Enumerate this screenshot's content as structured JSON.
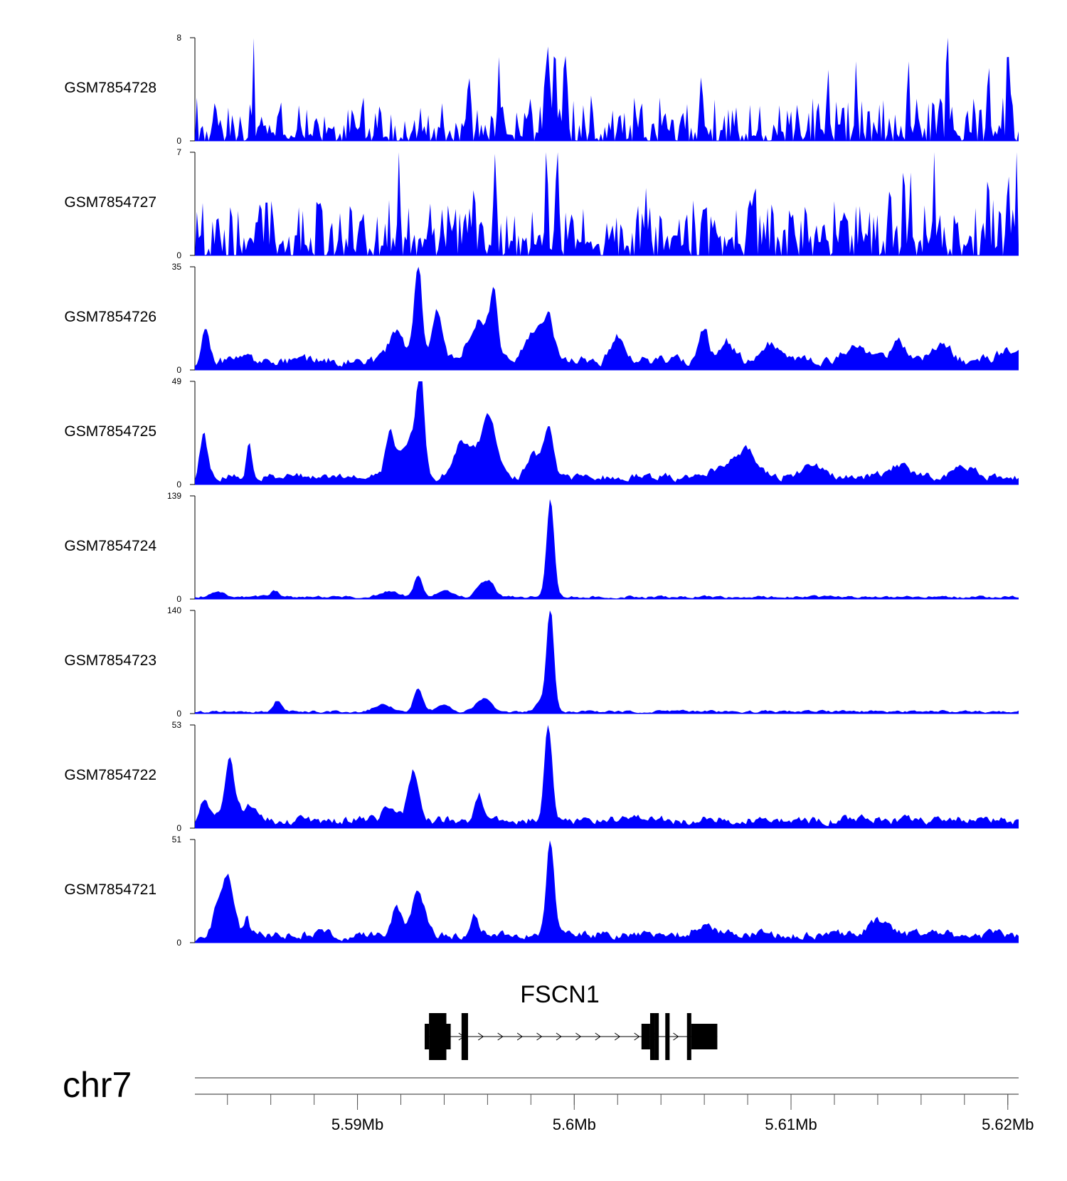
{
  "chart_data": {
    "type": "area",
    "title": "",
    "chromosome": "chr7",
    "xlim": [
      5.5825,
      5.6205
    ],
    "x_unit": "Mb",
    "x_ticks": [
      {
        "value": 5.59,
        "label": "5.59Mb"
      },
      {
        "value": 5.6,
        "label": "5.6Mb"
      },
      {
        "value": 5.61,
        "label": "5.61Mb"
      },
      {
        "value": 5.62,
        "label": "5.62Mb"
      }
    ],
    "minor_tick_step": 0.002,
    "fill_color": "#0000ff",
    "tracks": [
      {
        "name": "GSM7854728",
        "ymax": "8",
        "ymin": "0",
        "max": 8,
        "noise": 1.6,
        "seed": 28,
        "spiky": true,
        "peaks": [
          [
            5.5852,
            5.6,
            4e-05
          ],
          [
            5.5988,
            6.4,
            0.0001
          ],
          [
            5.5991,
            7.5,
            6e-05
          ],
          [
            5.5996,
            6.1,
            7e-05
          ],
          [
            5.6008,
            3.8,
            6e-05
          ],
          [
            5.5965,
            4.4,
            6e-05
          ],
          [
            5.5951,
            3.2,
            6e-05
          ],
          [
            5.6059,
            3.9,
            6e-05
          ],
          [
            5.6117,
            3.9,
            6e-05
          ],
          [
            5.613,
            4.8,
            6e-05
          ],
          [
            5.6154,
            6.8,
            5e-05
          ],
          [
            5.6172,
            7.9,
            5e-05
          ],
          [
            5.6191,
            4.1,
            6e-05
          ],
          [
            5.62,
            5.1,
            6e-05
          ]
        ]
      },
      {
        "name": "GSM7854727",
        "ymax": "7",
        "ymin": "0",
        "max": 7,
        "noise": 1.8,
        "seed": 27,
        "spiky": true,
        "peaks": [
          [
            5.5855,
            3.6,
            5e-05
          ],
          [
            5.5919,
            4.7,
            5e-05
          ],
          [
            5.5963,
            5.3,
            5e-05
          ],
          [
            5.5954,
            3.8,
            6e-05
          ],
          [
            5.5987,
            6.9,
            5e-05
          ],
          [
            5.5992,
            4.4,
            0.0001
          ],
          [
            5.6033,
            4.6,
            6e-05
          ],
          [
            5.6083,
            3.5,
            6e-05
          ],
          [
            5.6145,
            5.1,
            5e-05
          ],
          [
            5.6152,
            6.1,
            6e-05
          ],
          [
            5.6155,
            6.3,
            5e-05
          ],
          [
            5.6166,
            4.8,
            6e-05
          ],
          [
            5.6191,
            5.4,
            5e-05
          ],
          [
            5.62,
            4.6,
            5e-05
          ],
          [
            5.6204,
            4.3,
            5e-05
          ]
        ]
      },
      {
        "name": "GSM7854726",
        "ymax": "35",
        "ymin": "0",
        "max": 35,
        "noise": 3.2,
        "seed": 26,
        "peaks": [
          [
            5.583,
            11,
            0.00018
          ],
          [
            5.5918,
            10,
            0.00035
          ],
          [
            5.5928,
            33,
            0.00018
          ],
          [
            5.5937,
            17,
            0.00025
          ],
          [
            5.5956,
            14,
            0.00045
          ],
          [
            5.5963,
            20,
            0.00018
          ],
          [
            5.5981,
            10,
            0.00035
          ],
          [
            5.5988,
            14,
            0.00025
          ],
          [
            5.602,
            9,
            0.0003
          ],
          [
            5.606,
            11,
            0.0002
          ],
          [
            5.607,
            7,
            0.00035
          ],
          [
            5.609,
            6,
            0.0004
          ],
          [
            5.613,
            5,
            0.0005
          ],
          [
            5.615,
            6,
            0.0004
          ],
          [
            5.617,
            5,
            0.0004
          ],
          [
            5.62,
            3,
            0.0005
          ]
        ]
      },
      {
        "name": "GSM7854725",
        "ymax": "49",
        "ymin": "0",
        "max": 49,
        "noise": 3.6,
        "seed": 25,
        "peaks": [
          [
            5.5829,
            20,
            0.00018
          ],
          [
            5.585,
            16,
            0.00013
          ],
          [
            5.5915,
            22,
            0.0002
          ],
          [
            5.5929,
            45,
            0.00018
          ],
          [
            5.5924,
            18,
            0.0004
          ],
          [
            5.5947,
            12,
            0.00035
          ],
          [
            5.5961,
            26,
            0.0003
          ],
          [
            5.5954,
            12,
            0.00045
          ],
          [
            5.5988,
            24,
            0.00022
          ],
          [
            5.5981,
            10,
            0.0003
          ],
          [
            5.608,
            12,
            0.0004
          ],
          [
            5.607,
            6,
            0.0006
          ],
          [
            5.611,
            5,
            0.0006
          ],
          [
            5.615,
            6,
            0.0005
          ],
          [
            5.618,
            4,
            0.0006
          ]
        ]
      },
      {
        "name": "GSM7854724",
        "ymax": "139",
        "ymin": "0",
        "max": 139,
        "noise": 3.0,
        "seed": 24,
        "peaks": [
          [
            5.5989,
            133,
            0.00017
          ],
          [
            5.5928,
            30,
            0.00018
          ],
          [
            5.5958,
            18,
            0.0003
          ],
          [
            5.5962,
            12,
            0.0002
          ],
          [
            5.5915,
            8,
            0.0004
          ],
          [
            5.5862,
            8,
            0.0002
          ],
          [
            5.5836,
            7,
            0.0003
          ],
          [
            5.594,
            8,
            0.0003
          ]
        ]
      },
      {
        "name": "GSM7854723",
        "ymax": "140",
        "ymin": "0",
        "max": 140,
        "noise": 3.0,
        "seed": 23,
        "peaks": [
          [
            5.5989,
            133,
            0.00016
          ],
          [
            5.5928,
            32,
            0.0002
          ],
          [
            5.5958,
            18,
            0.00035
          ],
          [
            5.5912,
            10,
            0.0004
          ],
          [
            5.5863,
            15,
            0.00018
          ],
          [
            5.594,
            9,
            0.0003
          ],
          [
            5.5986,
            18,
            0.0003
          ]
        ]
      },
      {
        "name": "GSM7854722",
        "ymax": "53",
        "ymin": "0",
        "max": 53,
        "noise": 4.2,
        "seed": 22,
        "peaks": [
          [
            5.5841,
            33,
            0.00022
          ],
          [
            5.5829,
            12,
            0.0002
          ],
          [
            5.5926,
            26,
            0.00025
          ],
          [
            5.5956,
            14,
            0.00018
          ],
          [
            5.5988,
            50,
            0.00018
          ],
          [
            5.5915,
            7,
            0.0003
          ],
          [
            5.585,
            7,
            0.0004
          ]
        ]
      },
      {
        "name": "GSM7854721",
        "ymax": "51",
        "ymin": "0",
        "max": 51,
        "noise": 4.0,
        "seed": 21,
        "peaks": [
          [
            5.584,
            30,
            0.00028
          ],
          [
            5.5849,
            9,
            0.00012
          ],
          [
            5.5928,
            22,
            0.0003
          ],
          [
            5.5918,
            13,
            0.00025
          ],
          [
            5.5954,
            9,
            0.00015
          ],
          [
            5.5989,
            48,
            0.00018
          ],
          [
            5.5835,
            10,
            0.0002
          ],
          [
            5.606,
            6,
            0.0004
          ],
          [
            5.614,
            7,
            0.0004
          ]
        ]
      }
    ],
    "gene": {
      "name": "FSCN1",
      "strand": "+",
      "start": 5.5931,
      "end": 5.6066,
      "exons": [
        {
          "start": 5.5931,
          "end": 5.5933,
          "kind": "utr"
        },
        {
          "start": 5.5933,
          "end": 5.5941,
          "kind": "cds"
        },
        {
          "start": 5.5941,
          "end": 5.5943,
          "kind": "utr"
        },
        {
          "start": 5.5948,
          "end": 5.5951,
          "kind": "cds"
        },
        {
          "start": 5.6031,
          "end": 5.6035,
          "kind": "utr"
        },
        {
          "start": 5.6035,
          "end": 5.6037,
          "kind": "cds"
        },
        {
          "start": 5.6037,
          "end": 5.6039,
          "kind": "cds"
        },
        {
          "start": 5.6042,
          "end": 5.6044,
          "kind": "cds"
        },
        {
          "start": 5.6052,
          "end": 5.6054,
          "kind": "cds"
        },
        {
          "start": 5.6054,
          "end": 5.6066,
          "kind": "utr"
        }
      ]
    }
  }
}
